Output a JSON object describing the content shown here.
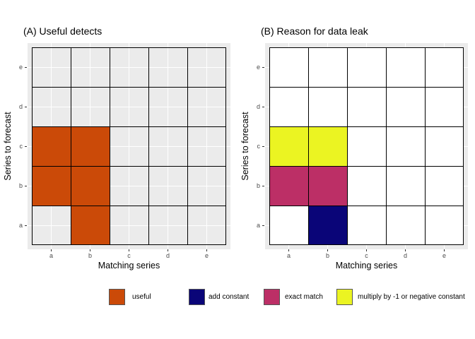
{
  "figure": {
    "panel_bg": "#EBEBEB",
    "grid_color": "#FFFFFF",
    "tile_border_color": "#000000",
    "tick_color": "#333333",
    "tick_label_color": "#4D4D4D"
  },
  "axes": {
    "x_label": "Matching series",
    "y_label": "Series to forecast",
    "x_ticks": [
      "a",
      "b",
      "c",
      "d",
      "e"
    ],
    "y_ticks_top_to_bottom": [
      "e",
      "d",
      "c",
      "b",
      "a"
    ]
  },
  "panels": [
    {
      "id": "A",
      "title": "(A) Useful detects",
      "default_fill": "transparent",
      "cells": [
        {
          "x": "a",
          "y": "c",
          "key": "useful"
        },
        {
          "x": "b",
          "y": "c",
          "key": "useful"
        },
        {
          "x": "a",
          "y": "b",
          "key": "useful"
        },
        {
          "x": "b",
          "y": "b",
          "key": "useful"
        },
        {
          "x": "b",
          "y": "a",
          "key": "useful"
        }
      ]
    },
    {
      "id": "B",
      "title": "(B) Reason for data leak",
      "default_fill": "#FFFFFF",
      "cells": [
        {
          "x": "a",
          "y": "c",
          "key": "multiply by -1 or negative constant"
        },
        {
          "x": "b",
          "y": "c",
          "key": "multiply by -1 or negative constant"
        },
        {
          "x": "a",
          "y": "b",
          "key": "exact match"
        },
        {
          "x": "b",
          "y": "b",
          "key": "exact match"
        },
        {
          "x": "b",
          "y": "a",
          "key": "add constant"
        }
      ]
    }
  ],
  "legend": {
    "items": [
      {
        "label": "useful",
        "color": "#CB4A08"
      },
      {
        "label": "add constant",
        "color": "#0A0578"
      },
      {
        "label": "exact match",
        "color": "#BC2F66"
      },
      {
        "label": "multiply by -1 or negative constant",
        "color": "#EBF422"
      }
    ]
  },
  "chart_data": [
    {
      "type": "heatmap",
      "title": "(A) Useful detects",
      "xlabel": "Matching series",
      "ylabel": "Series to forecast",
      "x_categories": [
        "a",
        "b",
        "c",
        "d",
        "e"
      ],
      "y_categories": [
        "a",
        "b",
        "c",
        "d",
        "e"
      ],
      "cells": [
        {
          "x": "a",
          "y": "c",
          "value": "useful"
        },
        {
          "x": "b",
          "y": "c",
          "value": "useful"
        },
        {
          "x": "a",
          "y": "b",
          "value": "useful"
        },
        {
          "x": "b",
          "y": "b",
          "value": "useful"
        },
        {
          "x": "b",
          "y": "a",
          "value": "useful"
        }
      ],
      "legend_entries": [
        "useful"
      ],
      "colors": {
        "useful": "#CB4A08"
      },
      "grid": true,
      "legend_position": "bottom",
      "empty_cell_fill": "#EBEBEB"
    },
    {
      "type": "heatmap",
      "title": "(B) Reason for data leak",
      "xlabel": "Matching series",
      "ylabel": "Series to forecast",
      "x_categories": [
        "a",
        "b",
        "c",
        "d",
        "e"
      ],
      "y_categories": [
        "a",
        "b",
        "c",
        "d",
        "e"
      ],
      "cells": [
        {
          "x": "a",
          "y": "c",
          "value": "multiply by -1 or negative constant"
        },
        {
          "x": "b",
          "y": "c",
          "value": "multiply by -1 or negative constant"
        },
        {
          "x": "a",
          "y": "b",
          "value": "exact match"
        },
        {
          "x": "b",
          "y": "b",
          "value": "exact match"
        },
        {
          "x": "b",
          "y": "a",
          "value": "add constant"
        }
      ],
      "legend_entries": [
        "add constant",
        "exact match",
        "multiply by -1 or negative constant"
      ],
      "colors": {
        "add constant": "#0A0578",
        "exact match": "#BC2F66",
        "multiply by -1 or negative constant": "#EBF422"
      },
      "grid": true,
      "legend_position": "bottom",
      "empty_cell_fill": "#FFFFFF"
    }
  ]
}
